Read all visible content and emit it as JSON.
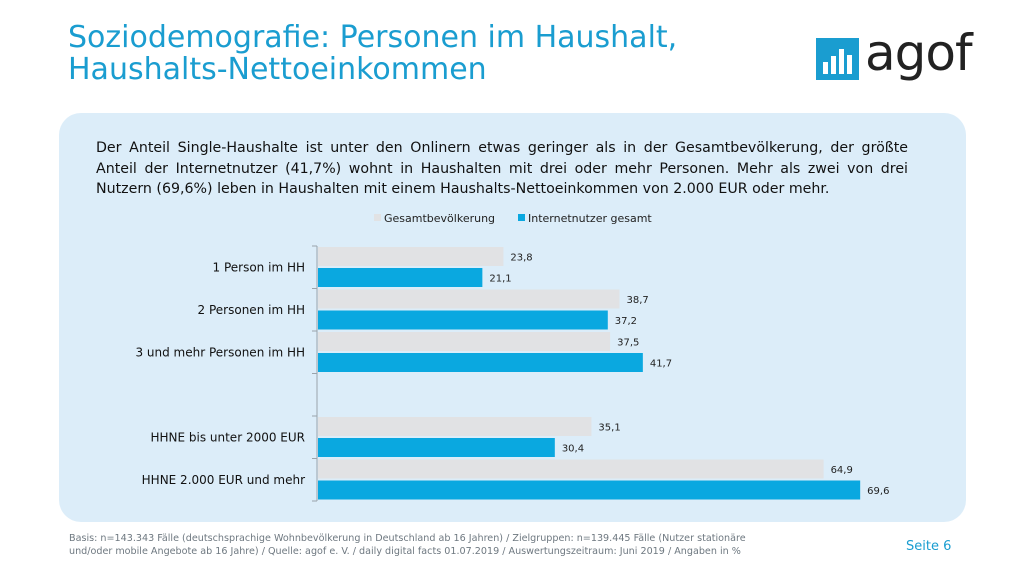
{
  "slide": {
    "title_line1": "Soziodemografie: Personen im Haushalt,",
    "title_line2": "Haushalts-Nettoeinkommen",
    "logo_text": "agof",
    "intro": "Der Anteil Single-Haushalte ist unter den Onlinern etwas geringer als in der Gesamtbevölkerung, der größte Anteil der Internetnutzer (41,7%) wohnt in Haushalten mit drei oder mehr Personen. Mehr als zwei von drei Nutzern (69,6%) leben in Haushalten mit einem Haushalts-Nettoeinkommen von 2.000 EUR oder mehr.",
    "footer_line1": "Basis: n=143.343 Fälle (deutschsprachige Wohnbevölkerung in Deutschland ab 16 Jahren) / Zielgruppen: n=139.445 Fälle (Nutzer stationäre",
    "footer_line2": "und/oder mobile Angebote ab 16 Jahre) / Quelle: agof e. V. / daily digital facts 01.07.2019 / Auswertungszeitraum: Juni 2019 / Angaben in %",
    "page": "Seite 6"
  },
  "colors": {
    "brand": "#1a9dd0",
    "series_gesamt": "#e1e2e4",
    "series_internet": "#0aa8e0",
    "panel": "#dcedf9"
  },
  "chart_data": {
    "type": "bar",
    "orientation": "horizontal",
    "categories": [
      "1 Person im HH",
      "2 Personen im HH",
      "3 und mehr Personen im HH",
      "",
      "HHNE bis unter 2000 EUR",
      "HHNE 2.000 EUR und mehr"
    ],
    "series": [
      {
        "name": "Gesamtbevölkerung",
        "values": [
          23.8,
          38.7,
          37.5,
          null,
          35.1,
          64.9
        ],
        "labels": [
          "23,8",
          "38,7",
          "37,5",
          "",
          "35,1",
          "64,9"
        ]
      },
      {
        "name": "Internetnutzer gesamt",
        "values": [
          21.1,
          37.2,
          41.7,
          null,
          30.4,
          69.6
        ],
        "labels": [
          "21,1",
          "37,2",
          "41,7",
          "",
          "30,4",
          "69,6"
        ]
      }
    ],
    "legend_position": "top",
    "grid": false,
    "xlim": [
      0,
      70
    ]
  }
}
